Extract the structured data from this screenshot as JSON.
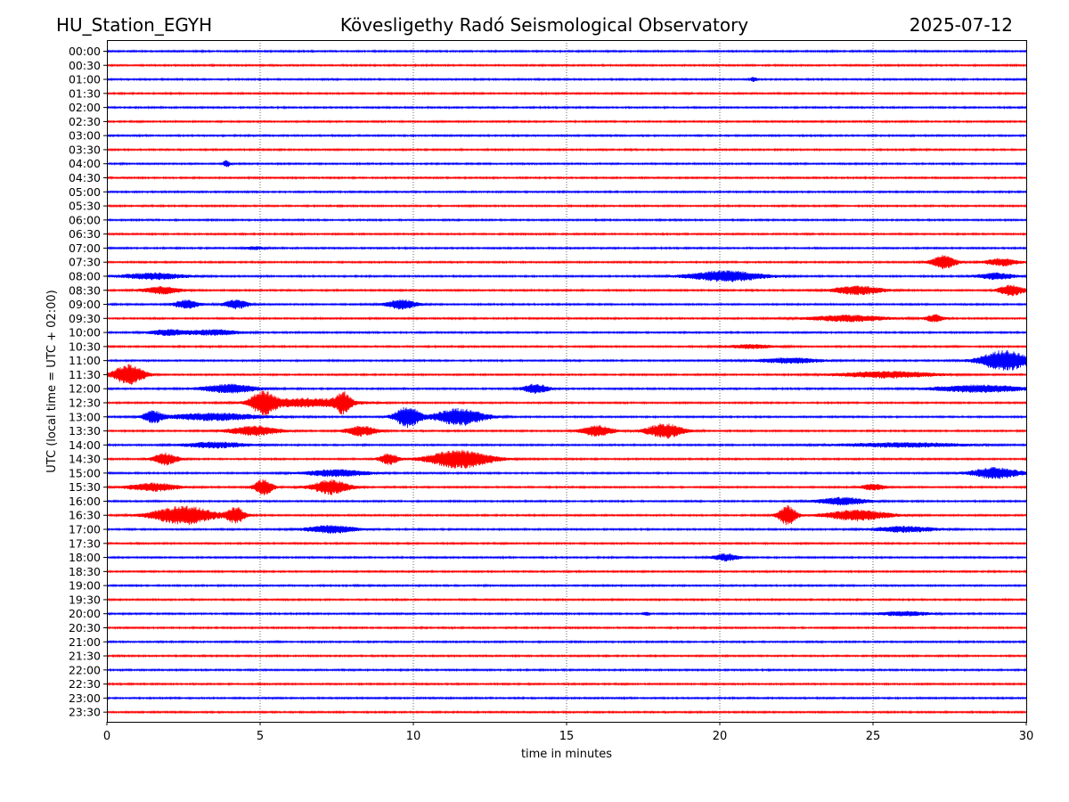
{
  "header": {
    "station": "HU_Station_EGYH",
    "title": "Kövesligethy Radó Seismological Observatory",
    "date": "2025-07-12"
  },
  "chart_data": {
    "type": "line",
    "xlabel": "time in minutes",
    "ylabel": "UTC (local time = UTC + 02:00)",
    "xlim": [
      0,
      30
    ],
    "xticks": [
      0,
      5,
      10,
      15,
      20,
      25,
      30
    ],
    "grid": "vertical dotted lines at each x tick",
    "trace_colors": [
      "#0000ff",
      "#ff0000"
    ],
    "traces": [
      {
        "label": "00:00",
        "bursts": []
      },
      {
        "label": "00:30",
        "bursts": []
      },
      {
        "label": "01:00",
        "bursts": [
          {
            "t": 21.1,
            "w": 0.1,
            "a": 0.6
          }
        ]
      },
      {
        "label": "01:30",
        "bursts": []
      },
      {
        "label": "02:00",
        "bursts": []
      },
      {
        "label": "02:30",
        "bursts": []
      },
      {
        "label": "03:00",
        "bursts": []
      },
      {
        "label": "03:30",
        "bursts": []
      },
      {
        "label": "04:00",
        "bursts": [
          {
            "t": 3.9,
            "w": 0.1,
            "a": 1.0
          }
        ]
      },
      {
        "label": "04:30",
        "bursts": []
      },
      {
        "label": "05:00",
        "bursts": []
      },
      {
        "label": "05:30",
        "bursts": []
      },
      {
        "label": "06:00",
        "bursts": []
      },
      {
        "label": "06:30",
        "bursts": []
      },
      {
        "label": "07:00",
        "bursts": [
          {
            "t": 4.8,
            "w": 0.3,
            "a": 0.4
          }
        ]
      },
      {
        "label": "07:30",
        "bursts": [
          {
            "t": 27.3,
            "w": 0.4,
            "a": 1.8
          },
          {
            "t": 29.2,
            "w": 0.5,
            "a": 1.0
          }
        ]
      },
      {
        "label": "08:00",
        "bursts": [
          {
            "t": 1.5,
            "w": 1.0,
            "a": 0.9
          },
          {
            "t": 20.2,
            "w": 1.2,
            "a": 1.5
          },
          {
            "t": 29.0,
            "w": 0.6,
            "a": 0.9
          }
        ]
      },
      {
        "label": "08:30",
        "bursts": [
          {
            "t": 1.8,
            "w": 0.6,
            "a": 1.0
          },
          {
            "t": 24.5,
            "w": 0.8,
            "a": 1.2
          },
          {
            "t": 29.5,
            "w": 0.4,
            "a": 1.5
          }
        ]
      },
      {
        "label": "09:00",
        "bursts": [
          {
            "t": 2.6,
            "w": 0.4,
            "a": 1.2
          },
          {
            "t": 4.2,
            "w": 0.4,
            "a": 1.2
          },
          {
            "t": 9.6,
            "w": 0.5,
            "a": 1.3
          }
        ]
      },
      {
        "label": "09:30",
        "bursts": [
          {
            "t": 24.2,
            "w": 1.2,
            "a": 0.9
          },
          {
            "t": 27.0,
            "w": 0.3,
            "a": 1.0
          }
        ]
      },
      {
        "label": "10:00",
        "bursts": [
          {
            "t": 2.0,
            "w": 0.6,
            "a": 0.8
          },
          {
            "t": 3.5,
            "w": 0.8,
            "a": 0.8
          }
        ]
      },
      {
        "label": "10:30",
        "bursts": [
          {
            "t": 21.0,
            "w": 0.8,
            "a": 0.5
          }
        ]
      },
      {
        "label": "11:00",
        "bursts": [
          {
            "t": 22.3,
            "w": 1.0,
            "a": 0.7
          },
          {
            "t": 29.3,
            "w": 0.8,
            "a": 2.8
          }
        ]
      },
      {
        "label": "11:30",
        "bursts": [
          {
            "t": 0.7,
            "w": 0.5,
            "a": 2.8
          },
          {
            "t": 25.5,
            "w": 1.5,
            "a": 0.9
          }
        ]
      },
      {
        "label": "12:00",
        "bursts": [
          {
            "t": 4.0,
            "w": 0.9,
            "a": 1.2
          },
          {
            "t": 14.0,
            "w": 0.4,
            "a": 1.3
          },
          {
            "t": 28.5,
            "w": 1.5,
            "a": 1.0
          }
        ]
      },
      {
        "label": "12:30",
        "bursts": [
          {
            "t": 5.1,
            "w": 0.4,
            "a": 3.0
          },
          {
            "t": 7.7,
            "w": 0.25,
            "a": 2.6
          },
          {
            "t": 6.5,
            "w": 1.5,
            "a": 1.2
          }
        ]
      },
      {
        "label": "13:00",
        "bursts": [
          {
            "t": 1.5,
            "w": 0.3,
            "a": 1.6
          },
          {
            "t": 3.5,
            "w": 1.5,
            "a": 1.0
          },
          {
            "t": 9.8,
            "w": 0.4,
            "a": 3.0
          },
          {
            "t": 11.5,
            "w": 0.8,
            "a": 2.4
          }
        ]
      },
      {
        "label": "13:30",
        "bursts": [
          {
            "t": 4.8,
            "w": 0.8,
            "a": 1.3
          },
          {
            "t": 8.3,
            "w": 0.5,
            "a": 1.4
          },
          {
            "t": 16.0,
            "w": 0.5,
            "a": 1.5
          },
          {
            "t": 18.2,
            "w": 0.6,
            "a": 2.0
          }
        ]
      },
      {
        "label": "14:00",
        "bursts": [
          {
            "t": 3.5,
            "w": 1.0,
            "a": 0.8
          },
          {
            "t": 26.0,
            "w": 2.0,
            "a": 0.6
          }
        ]
      },
      {
        "label": "14:30",
        "bursts": [
          {
            "t": 1.9,
            "w": 0.4,
            "a": 1.6
          },
          {
            "t": 9.2,
            "w": 0.3,
            "a": 1.5
          },
          {
            "t": 11.5,
            "w": 1.0,
            "a": 2.6
          }
        ]
      },
      {
        "label": "15:00",
        "bursts": [
          {
            "t": 7.5,
            "w": 1.0,
            "a": 1.0
          },
          {
            "t": 29.0,
            "w": 0.8,
            "a": 1.5
          }
        ]
      },
      {
        "label": "15:30",
        "bursts": [
          {
            "t": 1.5,
            "w": 0.8,
            "a": 1.1
          },
          {
            "t": 5.1,
            "w": 0.3,
            "a": 2.2
          },
          {
            "t": 7.3,
            "w": 0.6,
            "a": 2.0
          },
          {
            "t": 25.0,
            "w": 0.4,
            "a": 0.8
          }
        ]
      },
      {
        "label": "16:00",
        "bursts": [
          {
            "t": 24.0,
            "w": 0.8,
            "a": 1.0
          }
        ]
      },
      {
        "label": "16:30",
        "bursts": [
          {
            "t": 2.5,
            "w": 1.0,
            "a": 2.6
          },
          {
            "t": 4.2,
            "w": 0.3,
            "a": 2.2
          },
          {
            "t": 22.2,
            "w": 0.3,
            "a": 2.6
          },
          {
            "t": 24.5,
            "w": 1.0,
            "a": 1.5
          }
        ]
      },
      {
        "label": "17:00",
        "bursts": [
          {
            "t": 7.3,
            "w": 0.8,
            "a": 1.1
          },
          {
            "t": 26.0,
            "w": 1.0,
            "a": 0.8
          }
        ]
      },
      {
        "label": "17:30",
        "bursts": []
      },
      {
        "label": "18:00",
        "bursts": [
          {
            "t": 20.2,
            "w": 0.4,
            "a": 1.0
          }
        ]
      },
      {
        "label": "18:30",
        "bursts": []
      },
      {
        "label": "19:00",
        "bursts": []
      },
      {
        "label": "19:30",
        "bursts": []
      },
      {
        "label": "20:00",
        "bursts": [
          {
            "t": 26.0,
            "w": 0.8,
            "a": 0.6
          },
          {
            "t": 17.6,
            "w": 0.1,
            "a": 0.5
          }
        ]
      },
      {
        "label": "20:30",
        "bursts": []
      },
      {
        "label": "21:00",
        "bursts": []
      },
      {
        "label": "21:30",
        "bursts": []
      },
      {
        "label": "22:00",
        "bursts": []
      },
      {
        "label": "22:30",
        "bursts": []
      },
      {
        "label": "23:00",
        "bursts": []
      },
      {
        "label": "23:30",
        "bursts": []
      }
    ]
  }
}
